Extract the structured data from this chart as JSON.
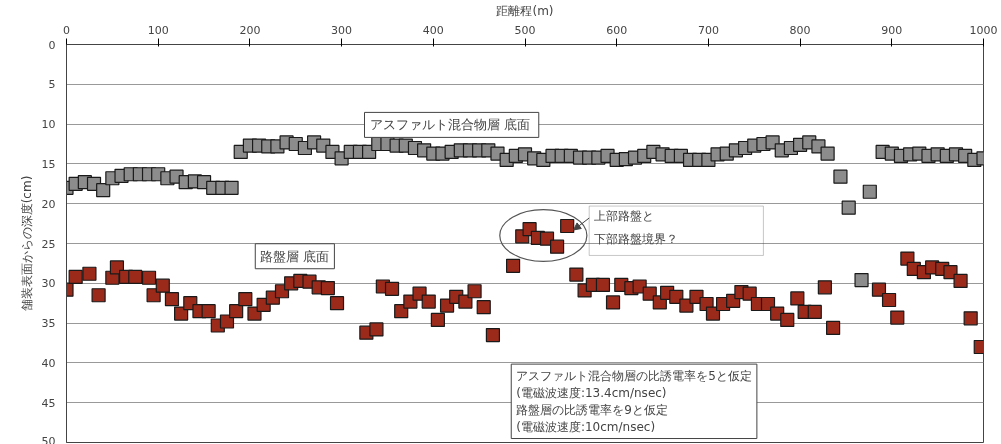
{
  "chart_data": {
    "type": "scatter",
    "xlabel": "距離程(m)",
    "ylabel": "舗装表面からの深度(cm)",
    "xlim": [
      0,
      1000
    ],
    "xticks": [
      0,
      100,
      200,
      300,
      400,
      500,
      600,
      700,
      800,
      900,
      1000
    ],
    "ylim": [
      50,
      0
    ],
    "yticks": [
      0,
      5,
      10,
      15,
      20,
      25,
      30,
      35,
      40,
      45,
      50
    ],
    "grid": "y",
    "marker": "square",
    "series": [
      {
        "color": "#8c8c8c",
        "x": [
          0,
          10,
          20,
          30,
          40,
          50,
          60,
          70,
          80,
          90,
          100,
          110,
          120,
          130,
          140,
          150,
          160,
          170,
          180,
          190,
          200,
          210,
          220,
          230,
          240,
          250,
          260,
          270,
          280,
          290,
          300,
          310,
          320,
          330,
          340,
          350,
          360,
          370,
          380,
          390,
          400,
          410,
          420,
          430,
          440,
          450,
          460,
          470,
          480,
          490,
          500,
          510,
          520,
          530,
          540,
          550,
          560,
          570,
          580,
          590,
          600,
          610,
          620,
          630,
          640,
          650,
          660,
          670,
          680,
          690,
          700,
          710,
          720,
          730,
          740,
          750,
          760,
          770,
          780,
          790,
          800,
          810,
          820,
          830,
          844,
          853,
          867,
          876,
          890,
          900,
          910,
          920,
          930,
          940,
          950,
          960,
          970,
          980,
          990,
          1000
        ],
        "values": [
          18,
          17.5,
          17.3,
          17.5,
          18.3,
          16.8,
          16.5,
          16.3,
          16.3,
          16.3,
          16.3,
          16.8,
          16.6,
          17.3,
          17.2,
          17.3,
          18,
          18,
          18,
          13.5,
          12.7,
          12.7,
          12.8,
          12.8,
          12.3,
          12.5,
          13,
          12.3,
          12.7,
          13.5,
          14.3,
          13.5,
          13.5,
          13.5,
          12.5,
          12.5,
          12.7,
          12.7,
          13,
          13.3,
          13.7,
          13.7,
          13.5,
          13.3,
          13.3,
          13.3,
          13.3,
          13.7,
          14.5,
          14,
          13.8,
          14.3,
          14.5,
          14,
          14,
          14,
          14.2,
          14.2,
          14.2,
          14,
          14.5,
          14.4,
          14.2,
          14,
          13.5,
          13.8,
          14,
          14,
          14.5,
          14.5,
          14.5,
          13.8,
          13.7,
          13.3,
          13,
          12.7,
          12.5,
          12.3,
          13.3,
          13,
          12.6,
          12.3,
          12.8,
          13.7,
          16.6,
          20.5,
          29.6,
          18.5,
          13.5,
          13.7,
          14,
          13.8,
          13.7,
          14,
          13.8,
          14,
          13.8,
          14,
          14.5,
          14.3
        ]
      },
      {
        "color": "#9b2a1a",
        "x": [
          0,
          10,
          25,
          35,
          50,
          55,
          65,
          75,
          90,
          95,
          105,
          115,
          125,
          135,
          145,
          155,
          165,
          175,
          185,
          195,
          205,
          215,
          225,
          235,
          245,
          255,
          265,
          275,
          285,
          295,
          327,
          338,
          345,
          355,
          365,
          375,
          385,
          395,
          405,
          415,
          425,
          435,
          445,
          455,
          465,
          487,
          497,
          505,
          514,
          524,
          535,
          546,
          556,
          565,
          574,
          585,
          596,
          605,
          616,
          625,
          636,
          647,
          655,
          665,
          676,
          687,
          698,
          705,
          716,
          727,
          736,
          745,
          754,
          765,
          775,
          786,
          797,
          805,
          816,
          827,
          836,
          886,
          897,
          906,
          917,
          924,
          935,
          944,
          955,
          964,
          975,
          986,
          997
        ],
        "values": [
          30.8,
          29.2,
          28.8,
          31.5,
          29.3,
          28,
          29.2,
          29.2,
          29.3,
          31.5,
          30.3,
          32,
          33.8,
          32.5,
          33.5,
          33.5,
          35.3,
          34.8,
          33.5,
          32,
          33.8,
          32.7,
          31.8,
          31,
          30,
          29.7,
          29.8,
          30.5,
          30.6,
          32.5,
          36.2,
          35.8,
          30.4,
          30.7,
          33.5,
          32.3,
          31.3,
          32.3,
          34.6,
          32.8,
          31.7,
          32.3,
          31,
          33,
          36.5,
          27.8,
          24.1,
          23.2,
          24.3,
          24.4,
          25.4,
          22.8,
          28.9,
          30.9,
          30.2,
          30.2,
          32.4,
          30.2,
          30.6,
          30.4,
          31.3,
          32.4,
          31.2,
          31.7,
          32.8,
          31.7,
          32.6,
          33.8,
          32.6,
          32.2,
          31.1,
          31.3,
          32.6,
          32.6,
          33.8,
          34.6,
          31.9,
          33.6,
          33.6,
          30.5,
          35.6,
          30.8,
          32.1,
          34.3,
          26.9,
          28.2,
          28.6,
          28,
          28.2,
          28.6,
          29.7,
          34.4,
          38
        ]
      }
    ],
    "annotations": [
      "アスファルト混合物層  底面",
      "路盤層 底面",
      "上部路盤と",
      "下部路盤境界？",
      "アスファルト混合物層の比誘電率を5と仮定\n(電磁波速度:13.4cm/nsec)\n路盤層の比誘電率を9と仮定\n(電磁波速度:10cm/nsec)"
    ]
  }
}
